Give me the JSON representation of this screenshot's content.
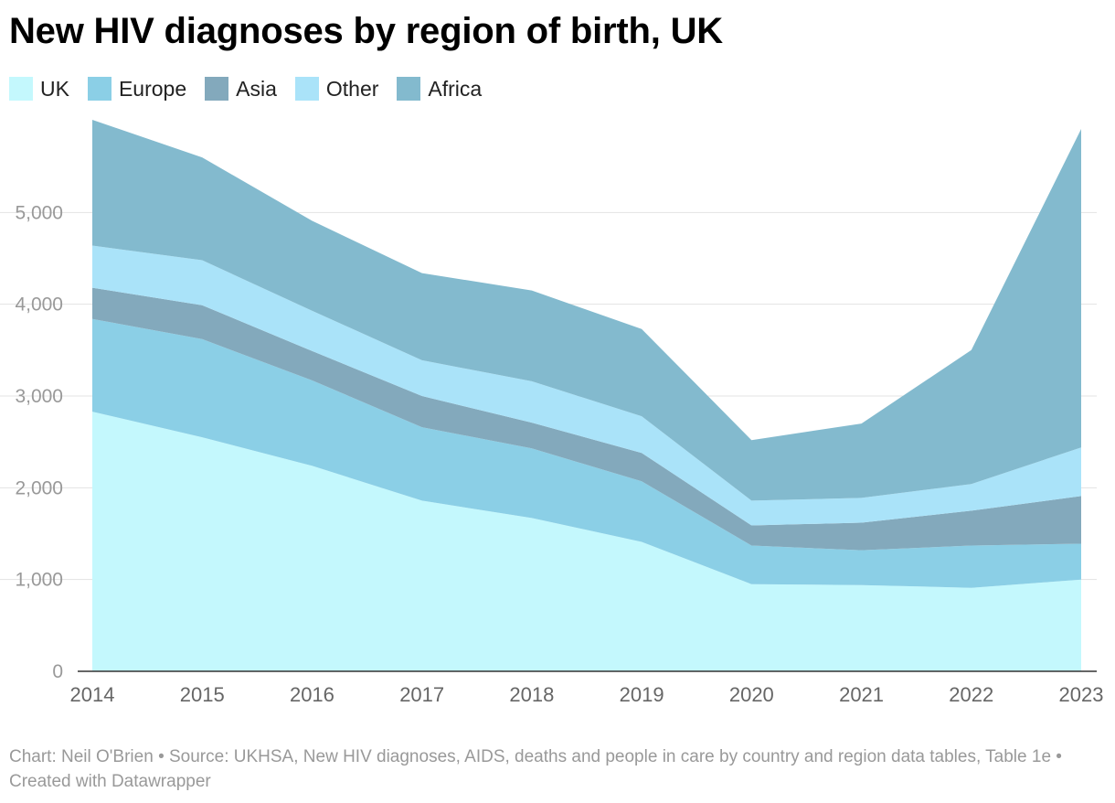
{
  "chart_data": {
    "type": "area",
    "stacked": true,
    "title": "New HIV diagnoses by region of birth, UK",
    "x": [
      "2014",
      "2015",
      "2016",
      "2017",
      "2018",
      "2019",
      "2020",
      "2021",
      "2022",
      "2023"
    ],
    "series": [
      {
        "name": "UK",
        "color": "#c4f8fd",
        "values": [
          2830,
          2550,
          2240,
          1860,
          1670,
          1410,
          950,
          940,
          910,
          1000
        ]
      },
      {
        "name": "Europe",
        "color": "#8bcfe6",
        "values": [
          1010,
          1070,
          930,
          800,
          760,
          660,
          420,
          380,
          460,
          390
        ]
      },
      {
        "name": "Asia",
        "color": "#83a9bc",
        "values": [
          340,
          370,
          320,
          340,
          280,
          310,
          220,
          300,
          380,
          520
        ]
      },
      {
        "name": "Other",
        "color": "#aae3f9",
        "values": [
          460,
          490,
          440,
          390,
          450,
          400,
          270,
          270,
          290,
          530
        ]
      },
      {
        "name": "Africa",
        "color": "#83bace",
        "values": [
          1370,
          1120,
          980,
          950,
          990,
          950,
          660,
          810,
          1460,
          3470
        ]
      }
    ],
    "yticks": [
      0,
      1000,
      2000,
      3000,
      4000,
      5000
    ],
    "ytick_labels": [
      "0",
      "1,000",
      "2,000",
      "3,000",
      "4,000",
      "5,000"
    ],
    "ylim": [
      0,
      6000
    ],
    "legend_position": "top-left",
    "grid": true
  },
  "legend": [
    {
      "label": "UK",
      "color": "#c4f8fd"
    },
    {
      "label": "Europe",
      "color": "#8bcfe6"
    },
    {
      "label": "Asia",
      "color": "#83a9bc"
    },
    {
      "label": "Other",
      "color": "#aae3f9"
    },
    {
      "label": "Africa",
      "color": "#83bace"
    }
  ],
  "footer": {
    "text": "Chart: Neil O'Brien • Source: UKHSA, New HIV diagnoses, AIDS, deaths and people in care by country and region data tables, Table 1e • Created with Datawrapper"
  }
}
